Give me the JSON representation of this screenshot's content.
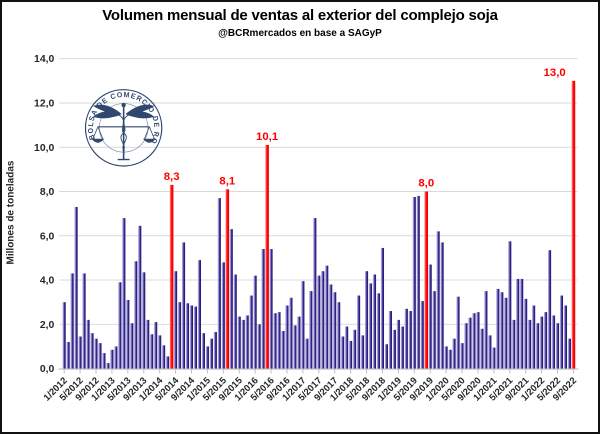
{
  "chart_data": {
    "type": "bar",
    "title": "Volumen mensual de ventas al exterior del complejo soja",
    "subtitle": "@BCRmercados en base a SAGyP",
    "ylabel": "Millones de toneladas",
    "ylim": [
      0,
      14
    ],
    "y_ticks": [
      "0,0",
      "2,0",
      "4,0",
      "6,0",
      "8,0",
      "10,0",
      "12,0",
      "14,0"
    ],
    "x_tick_every": 4,
    "grid": true,
    "legend": "none",
    "x": [
      "1/2012",
      "2/2012",
      "3/2012",
      "4/2012",
      "5/2012",
      "6/2012",
      "7/2012",
      "8/2012",
      "9/2012",
      "10/2012",
      "11/2012",
      "12/2012",
      "1/2013",
      "2/2013",
      "3/2013",
      "4/2013",
      "5/2013",
      "6/2013",
      "7/2013",
      "8/2013",
      "9/2013",
      "10/2013",
      "11/2013",
      "12/2013",
      "1/2014",
      "2/2014",
      "3/2014",
      "4/2014",
      "5/2014",
      "6/2014",
      "7/2014",
      "8/2014",
      "9/2014",
      "10/2014",
      "11/2014",
      "12/2014",
      "1/2015",
      "2/2015",
      "3/2015",
      "4/2015",
      "5/2015",
      "6/2015",
      "7/2015",
      "8/2015",
      "9/2015",
      "10/2015",
      "11/2015",
      "12/2015",
      "1/2016",
      "2/2016",
      "3/2016",
      "4/2016",
      "5/2016",
      "6/2016",
      "7/2016",
      "8/2016",
      "9/2016",
      "10/2016",
      "11/2016",
      "12/2016",
      "1/2017",
      "2/2017",
      "3/2017",
      "4/2017",
      "5/2017",
      "6/2017",
      "7/2017",
      "8/2017",
      "9/2017",
      "10/2017",
      "11/2017",
      "12/2017",
      "1/2018",
      "2/2018",
      "3/2018",
      "4/2018",
      "5/2018",
      "6/2018",
      "7/2018",
      "8/2018",
      "9/2018",
      "10/2018",
      "11/2018",
      "12/2018",
      "1/2019",
      "2/2019",
      "3/2019",
      "4/2019",
      "5/2019",
      "6/2019",
      "7/2019",
      "8/2019",
      "9/2019",
      "10/2019",
      "11/2019",
      "12/2019",
      "1/2020",
      "2/2020",
      "3/2020",
      "4/2020",
      "5/2020",
      "6/2020",
      "7/2020",
      "8/2020",
      "9/2020",
      "10/2020",
      "11/2020",
      "12/2020",
      "1/2021",
      "2/2021",
      "3/2021",
      "4/2021",
      "5/2021",
      "6/2021",
      "7/2021",
      "8/2021",
      "9/2021",
      "10/2021",
      "11/2021",
      "12/2021",
      "1/2022",
      "2/2022",
      "3/2022",
      "4/2022",
      "5/2022",
      "6/2022",
      "7/2022",
      "8/2022",
      "9/2022"
    ],
    "values": [
      3.0,
      1.2,
      4.3,
      7.3,
      1.45,
      4.3,
      2.2,
      1.6,
      1.35,
      1.15,
      0.7,
      0.25,
      0.85,
      1.0,
      3.9,
      6.8,
      3.1,
      2.05,
      4.85,
      6.45,
      4.35,
      2.2,
      1.55,
      2.1,
      1.5,
      1.05,
      0.55,
      8.3,
      4.4,
      3.0,
      5.7,
      2.95,
      2.85,
      2.8,
      4.9,
      1.6,
      1.0,
      1.35,
      1.65,
      7.7,
      4.8,
      8.1,
      6.3,
      4.25,
      2.35,
      2.2,
      2.4,
      3.3,
      4.2,
      2.0,
      5.4,
      10.1,
      5.4,
      2.5,
      2.55,
      1.7,
      2.85,
      3.2,
      1.95,
      2.35,
      3.95,
      1.35,
      3.5,
      6.8,
      4.2,
      4.4,
      4.65,
      3.8,
      3.45,
      3.0,
      1.45,
      1.9,
      1.25,
      1.75,
      3.3,
      1.5,
      4.4,
      3.85,
      4.25,
      3.4,
      5.45,
      1.1,
      2.6,
      1.75,
      2.2,
      1.9,
      2.7,
      2.6,
      7.75,
      7.8,
      3.05,
      8.0,
      4.7,
      3.5,
      6.2,
      5.7,
      1.0,
      0.85,
      1.35,
      3.25,
      1.15,
      2.05,
      2.3,
      2.5,
      2.55,
      1.8,
      3.5,
      1.5,
      0.95,
      3.6,
      3.45,
      3.2,
      5.75,
      2.2,
      4.05,
      4.05,
      3.15,
      2.2,
      2.85,
      2.05,
      2.35,
      2.55,
      5.35,
      2.4,
      2.05,
      3.3,
      2.85,
      1.35,
      13.0
    ],
    "highlights": [
      {
        "index": 27,
        "label": "8,3"
      },
      {
        "index": 41,
        "label": "8,1"
      },
      {
        "index": 51,
        "label": "10,1"
      },
      {
        "index": 91,
        "label": "8,0"
      },
      {
        "index": 128,
        "label": "13,0"
      }
    ],
    "colors": {
      "bar": "#2a2080",
      "bar_highlight_edge": "#a09ad8",
      "highlight_bar": "#ff0000",
      "grid": "#d9d9d9",
      "axis": "#bfbfbf",
      "text": "#262626",
      "label_red": "#ff0000",
      "logo": "#1f3864",
      "background": "#ffffff"
    },
    "logo_text": "BOLSA DE COMERCIO DE ROSARIO"
  }
}
